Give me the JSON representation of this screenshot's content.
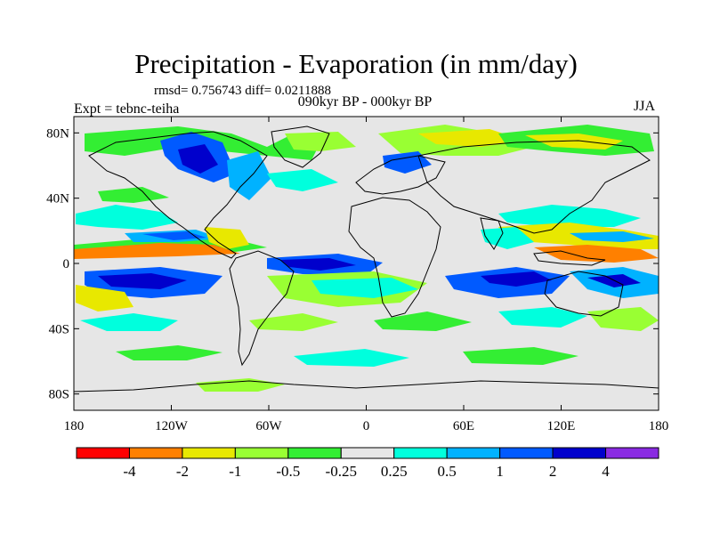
{
  "title": "Precipitation - Evaporation (in mm/day)",
  "stats": "rmsd= 0.756743 diff= 0.0211888",
  "subtitle": "090kyr BP - 000kyr BP",
  "experiment": "Expt = tebnc-teiha",
  "season": "JJA",
  "axes": {
    "y_ticks": [
      {
        "label": "80N",
        "lat": 80
      },
      {
        "label": "40N",
        "lat": 40
      },
      {
        "label": "0",
        "lat": 0
      },
      {
        "label": "40S",
        "lat": -40
      },
      {
        "label": "80S",
        "lat": -80
      }
    ],
    "x_ticks": [
      {
        "label": "180",
        "lon": -180
      },
      {
        "label": "120W",
        "lon": -120
      },
      {
        "label": "60W",
        "lon": -60
      },
      {
        "label": "0",
        "lon": 0
      },
      {
        "label": "60E",
        "lon": 60
      },
      {
        "label": "120E",
        "lon": 120
      },
      {
        "label": "180",
        "lon": 180
      }
    ],
    "lon_range": [
      -180,
      180
    ],
    "lat_range": [
      -90,
      90
    ]
  },
  "colorbar": {
    "colors": [
      "#ff0000",
      "#ff8000",
      "#e8e800",
      "#99ff33",
      "#33ee33",
      "#e6e6e6",
      "#00ffdd",
      "#00b2ff",
      "#005aff",
      "#0000cc",
      "#8a2be2"
    ],
    "labels": [
      "-4",
      "-2",
      "-1",
      "-0.5",
      "-0.25",
      "0.25",
      "0.5",
      "1",
      "2",
      "4"
    ]
  }
}
